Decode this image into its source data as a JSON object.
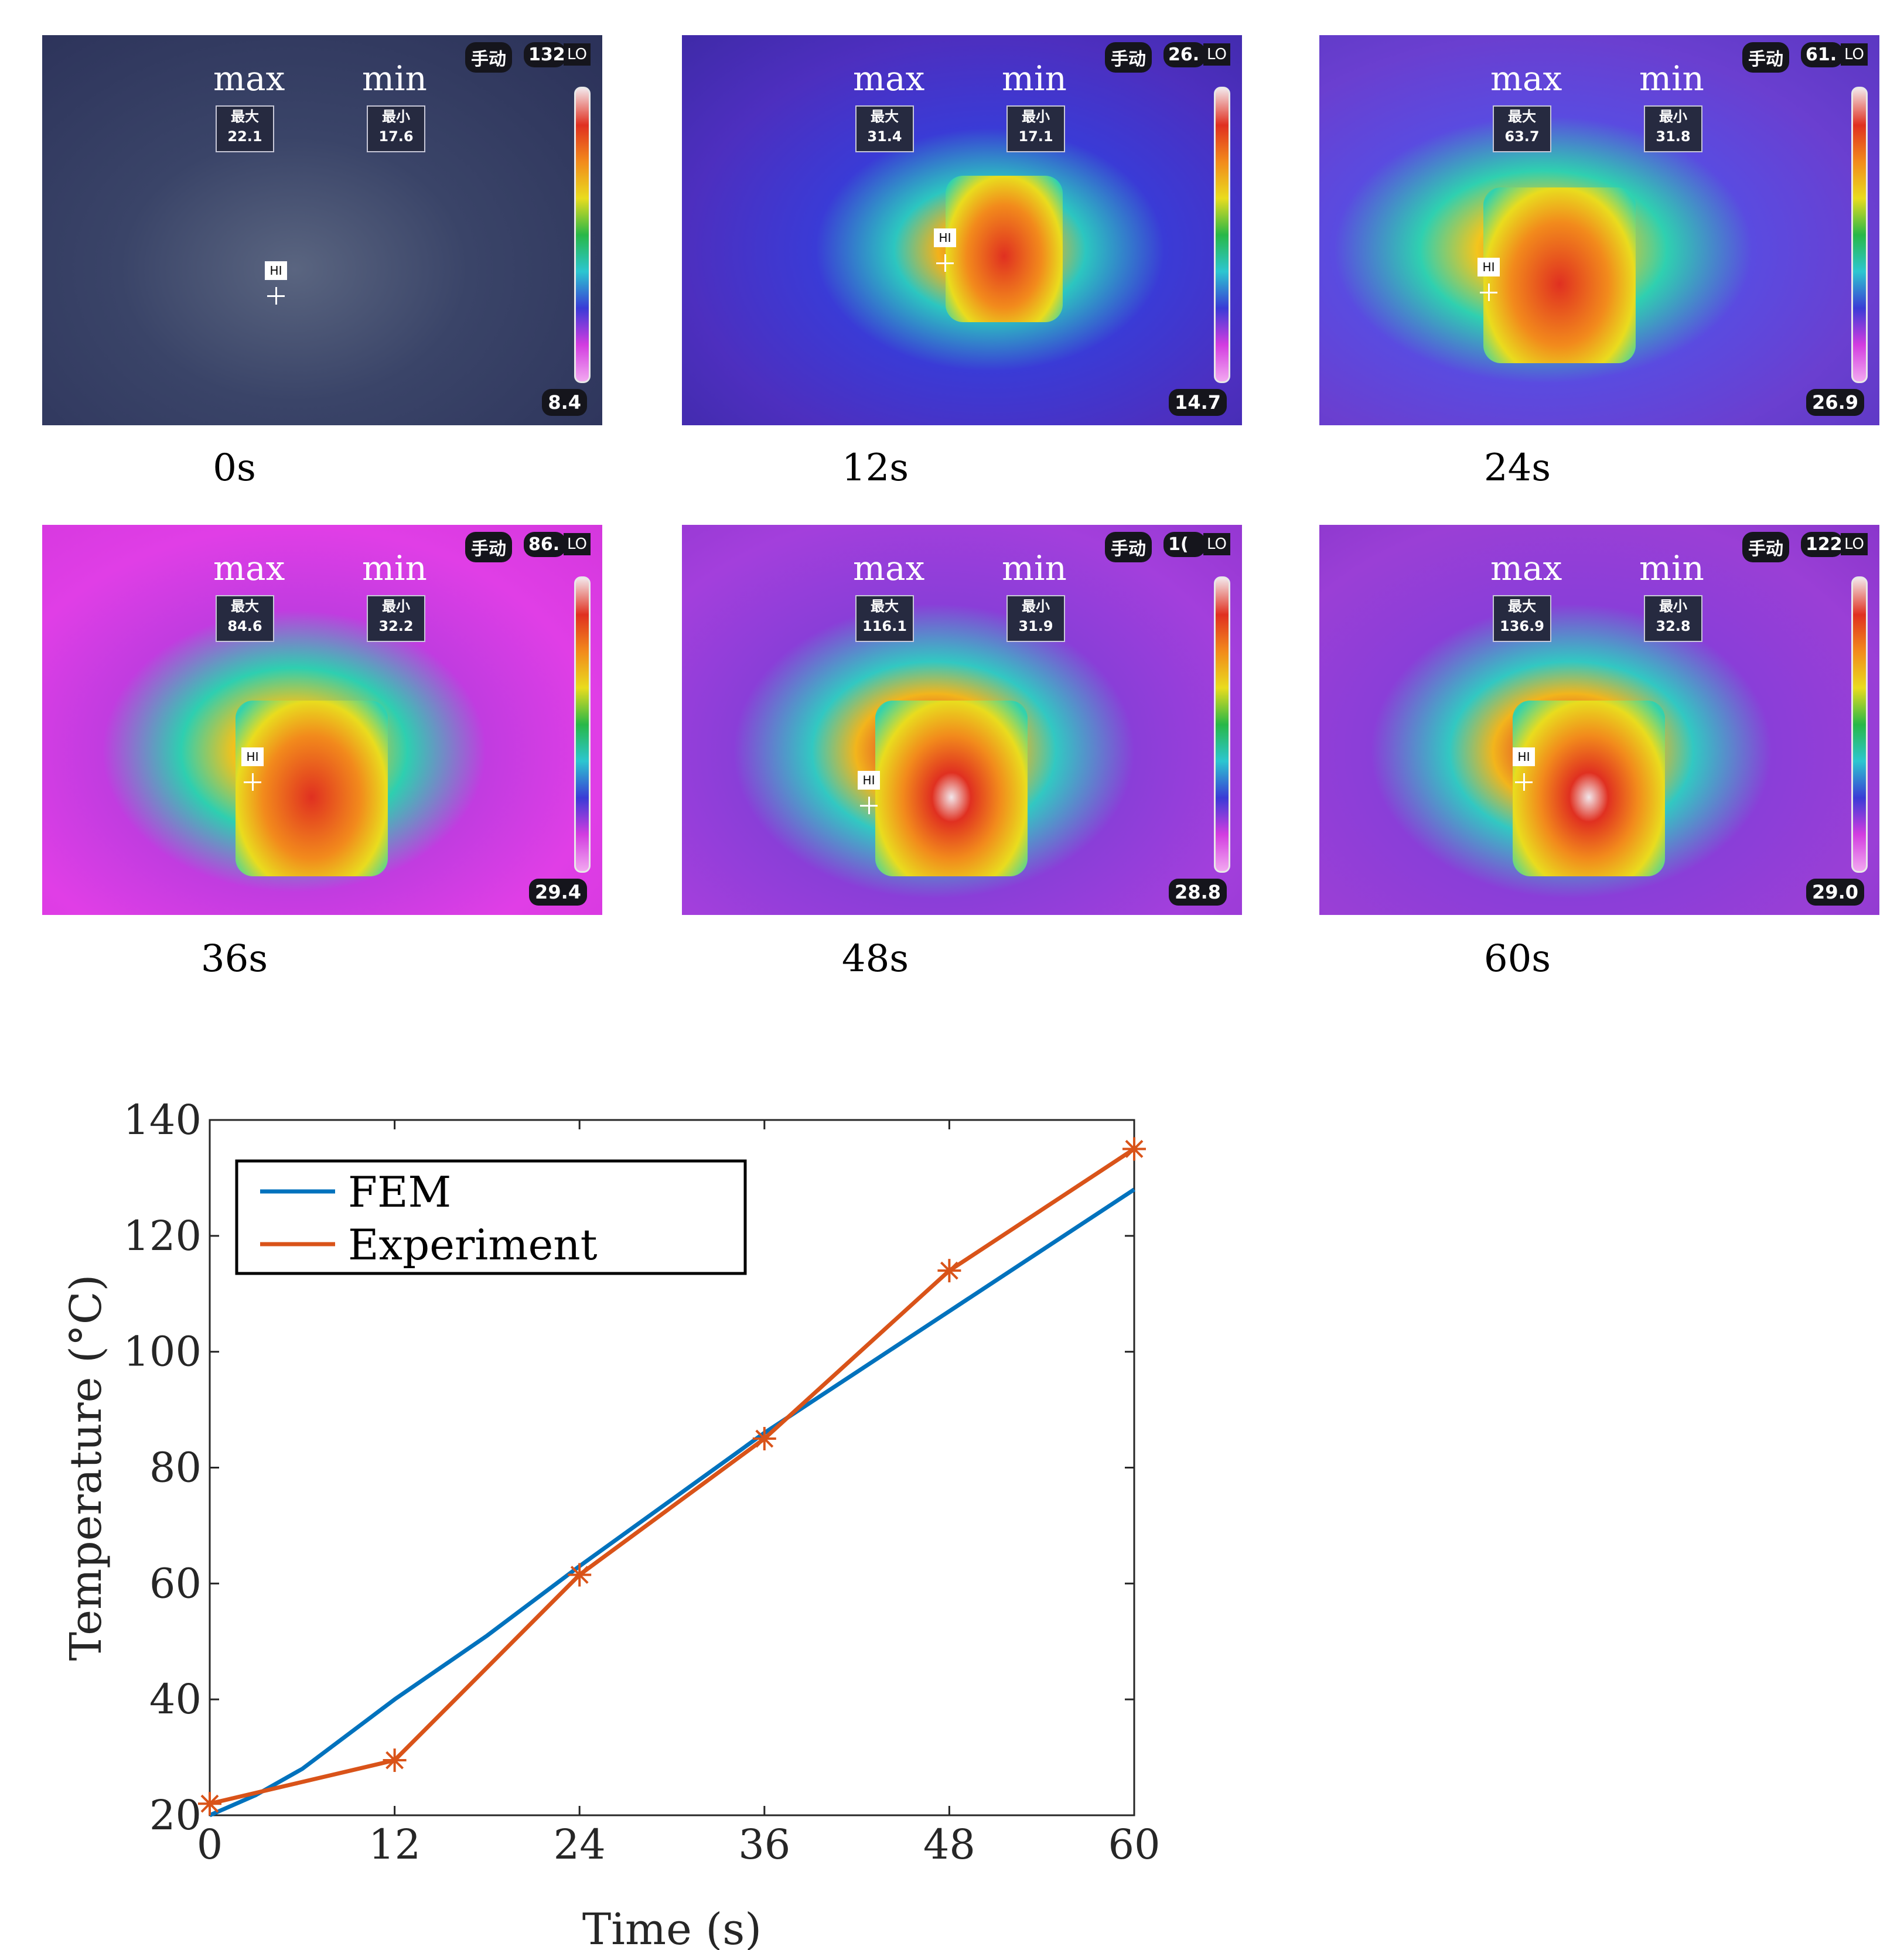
{
  "panels": [
    {
      "caption": "0s",
      "max": "22.1",
      "min": "17.6",
      "max_label": "max",
      "min_label": "min",
      "max_cn": "最大",
      "min_cn": "最小",
      "mode": "手动",
      "top_value": "132.",
      "lo": "LO",
      "bottom_value": "8.4",
      "hi": "HI"
    },
    {
      "caption": "12s",
      "max": "31.4",
      "min": "17.1",
      "max_label": "max",
      "min_label": "min",
      "max_cn": "最大",
      "min_cn": "最小",
      "mode": "手动",
      "top_value": "26.",
      "lo": "LO",
      "bottom_value": "14.7",
      "hi": "HI"
    },
    {
      "caption": "24s",
      "max": "63.7",
      "min": "31.8",
      "max_label": "max",
      "min_label": "min",
      "max_cn": "最大",
      "min_cn": "最小",
      "mode": "手动",
      "top_value": "61.",
      "lo": "LO",
      "bottom_value": "26.9",
      "hi": "HI"
    },
    {
      "caption": "36s",
      "max": "84.6",
      "min": "32.2",
      "max_label": "max",
      "min_label": "min",
      "max_cn": "最大",
      "min_cn": "最小",
      "mode": "手动",
      "top_value": "86.",
      "lo": "LO",
      "bottom_value": "29.4",
      "hi": "HI"
    },
    {
      "caption": "48s",
      "max": "116.1",
      "min": "31.9",
      "max_label": "max",
      "min_label": "min",
      "max_cn": "最大",
      "min_cn": "最小",
      "mode": "手动",
      "top_value": "1(",
      "lo": "LO",
      "bottom_value": "28.8",
      "hi": "HI"
    },
    {
      "caption": "60s",
      "max": "136.9",
      "min": "32.8",
      "max_label": "max",
      "min_label": "min",
      "max_cn": "最大",
      "min_cn": "最小",
      "mode": "手动",
      "top_value": "122",
      "lo": "LO",
      "bottom_value": "29.0",
      "hi": "HI"
    }
  ],
  "chart_data": {
    "type": "line",
    "xlabel": "Time (s)",
    "ylabel": "Temperature (°C)",
    "xlim": [
      0,
      60
    ],
    "ylim": [
      20,
      140
    ],
    "xticks": [
      "0",
      "12",
      "24",
      "36",
      "48",
      "60"
    ],
    "yticks": [
      "20",
      "40",
      "60",
      "80",
      "100",
      "120",
      "140"
    ],
    "legend_position": "top-left",
    "series": [
      {
        "name": "FEM",
        "color": "#0072BD",
        "marker": "none",
        "x": [
          0,
          3,
          6,
          12,
          18,
          24,
          30,
          36,
          42,
          48,
          54,
          60
        ],
        "y": [
          20,
          23.5,
          28,
          40,
          51,
          63,
          74.5,
          86,
          96.5,
          107,
          117.5,
          128
        ]
      },
      {
        "name": "Experiment",
        "color": "#D95319",
        "marker": "asterisk",
        "x": [
          0,
          12,
          24,
          36,
          48,
          60
        ],
        "y": [
          22,
          29.5,
          61.5,
          85,
          114,
          135
        ]
      }
    ]
  }
}
